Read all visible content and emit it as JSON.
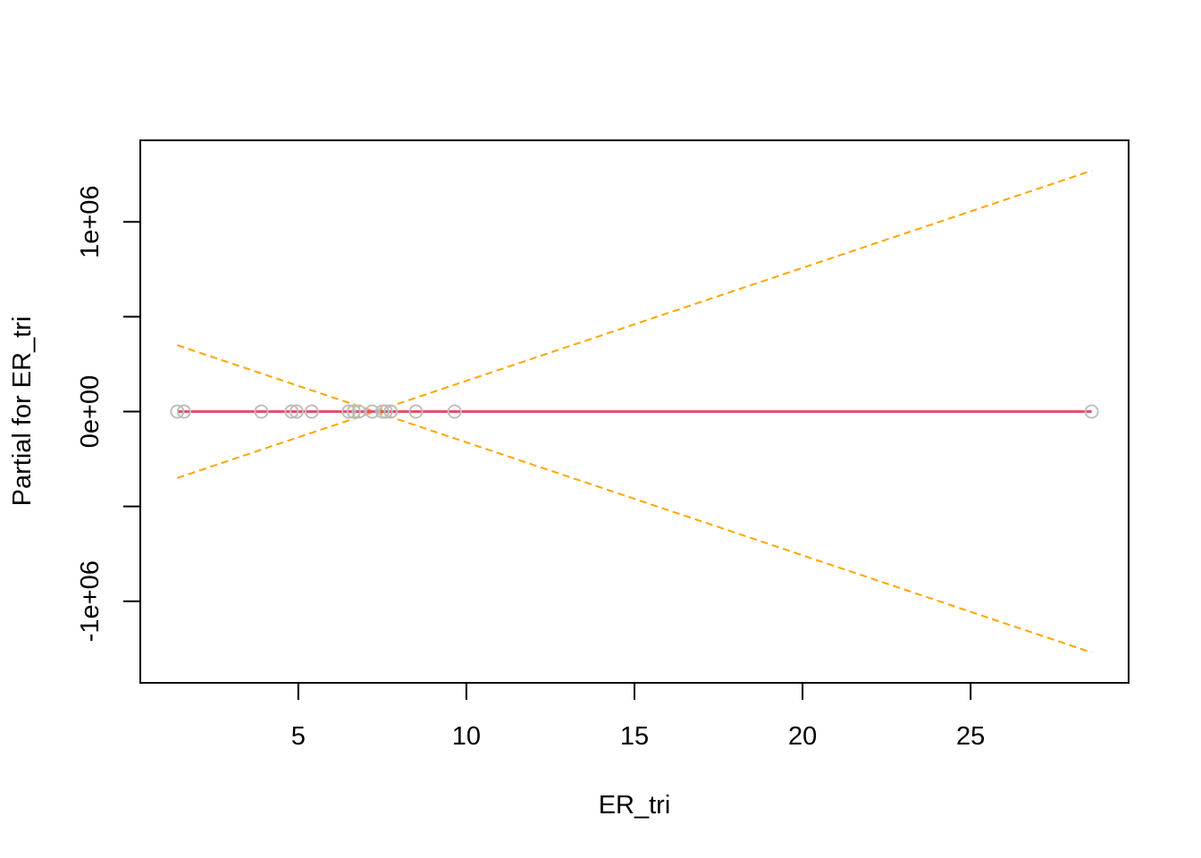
{
  "chart_data": {
    "type": "line",
    "title": "",
    "xlabel": "ER_tri",
    "ylabel": "Partial for ER_tri",
    "xlim": [
      0.3,
      29.7
    ],
    "ylim": [
      -1430000,
      1430000
    ],
    "x_ticks": [
      {
        "value": 5,
        "label": "5"
      },
      {
        "value": 10,
        "label": "10"
      },
      {
        "value": 15,
        "label": "15"
      },
      {
        "value": 20,
        "label": "20"
      },
      {
        "value": 25,
        "label": "25"
      }
    ],
    "y_ticks": [
      {
        "value": -1000000,
        "label": "-1e+06"
      },
      {
        "value": -500000,
        "label": ""
      },
      {
        "value": 0,
        "label": "0e+00"
      },
      {
        "value": 500000,
        "label": ""
      },
      {
        "value": 1000000,
        "label": "1e+06"
      }
    ],
    "partial_points": {
      "color": "#bebebe",
      "x": [
        1.4,
        1.6,
        3.9,
        4.8,
        4.95,
        5.4,
        6.5,
        6.65,
        6.8,
        7.2,
        7.5,
        7.6,
        7.75,
        8.5,
        9.65,
        28.6
      ],
      "y": [
        0,
        0,
        0,
        0,
        0,
        0,
        0,
        0,
        0,
        0,
        0,
        0,
        0,
        0,
        0,
        0
      ]
    },
    "fit_line": {
      "color": "#df536b",
      "x": [
        1.4,
        28.6
      ],
      "y": [
        0,
        0
      ]
    },
    "confidence_bands": {
      "color": "#ffa500",
      "style": "dashed",
      "upper": {
        "x": [
          1.4,
          28.6
        ],
        "y": [
          -350000,
          1270000
        ]
      },
      "lower": {
        "x": [
          1.4,
          28.6
        ],
        "y": [
          350000,
          -1270000
        ]
      }
    },
    "grid": false,
    "legend": "none"
  }
}
